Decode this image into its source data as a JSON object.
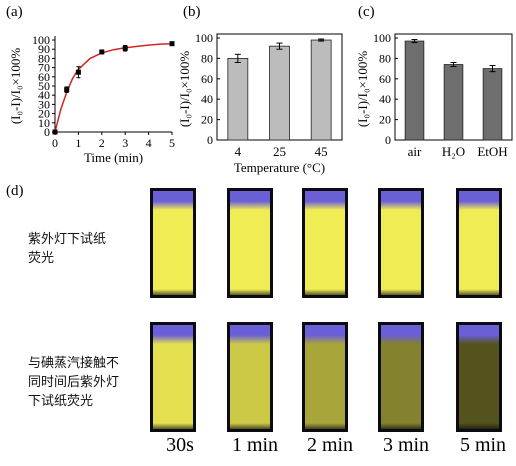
{
  "panels": {
    "a": {
      "label": "(a)",
      "chart_data": {
        "type": "line",
        "xlabel": "Time (min)",
        "ylabel": "(I₀-I)/I₀×100%",
        "xlim": [
          0,
          5
        ],
        "ylim": [
          0,
          100
        ],
        "xticks": [
          0,
          1,
          2,
          3,
          4,
          5
        ],
        "yticks": [
          0,
          10,
          20,
          30,
          40,
          50,
          60,
          70,
          80,
          90,
          100
        ],
        "points": [
          {
            "x": 0,
            "y": 0,
            "err": 1
          },
          {
            "x": 0.5,
            "y": 46,
            "err": 3
          },
          {
            "x": 1,
            "y": 65,
            "err": 6
          },
          {
            "x": 2,
            "y": 87,
            "err": 1
          },
          {
            "x": 3,
            "y": 91,
            "err": 3
          },
          {
            "x": 5,
            "y": 96,
            "err": 1
          }
        ],
        "fit": [
          [
            0,
            0
          ],
          [
            0.25,
            25
          ],
          [
            0.5,
            43
          ],
          [
            0.75,
            58
          ],
          [
            1,
            68
          ],
          [
            1.5,
            80
          ],
          [
            2,
            86
          ],
          [
            2.5,
            89.5
          ],
          [
            3,
            91.5
          ],
          [
            3.5,
            93
          ],
          [
            4,
            94.5
          ],
          [
            4.5,
            95.5
          ],
          [
            5,
            96
          ]
        ],
        "line_color": "#d32424",
        "marker_color": "#000000"
      }
    },
    "b": {
      "label": "(b)",
      "chart_data": {
        "type": "bar",
        "categories": [
          "4",
          "25",
          "45"
        ],
        "values": [
          80,
          92,
          98
        ],
        "errors": [
          4,
          3,
          1
        ],
        "xlabel": "Temperature (°C)",
        "ylabel": "(I₀-I)/I₀×100%",
        "ylim": [
          0,
          100
        ],
        "yticks": [
          0,
          20,
          40,
          60,
          80,
          100
        ],
        "bar_color": "#bcbcbc"
      }
    },
    "c": {
      "label": "(c)",
      "chart_data": {
        "type": "bar",
        "categories": [
          "air",
          "H₂O",
          "EtOH"
        ],
        "values": [
          97,
          74,
          70
        ],
        "errors": [
          1.5,
          2,
          3
        ],
        "xlabel": "",
        "ylabel": "(I₀-I)/I₀×100%",
        "ylim": [
          0,
          100
        ],
        "yticks": [
          0,
          20,
          40,
          60,
          80,
          100
        ],
        "bar_color": "#6e6e6e"
      }
    },
    "d": {
      "label": "(d)",
      "row1_text": [
        "紫外灯下试纸",
        "荧光"
      ],
      "row2_text": [
        "与碘蒸汽接触不",
        "同时间后紫外灯",
        "下试纸荧光"
      ],
      "time_labels": [
        "30s",
        "1 min",
        "2 min",
        "3 min",
        "5 min"
      ],
      "row2_brightness": [
        0.95,
        0.85,
        0.7,
        0.55,
        0.35
      ],
      "colors": {
        "uv_violet": "#6b5fd8",
        "paper_yellow": "#f1ee8a",
        "background": "#0b0b12"
      }
    }
  }
}
